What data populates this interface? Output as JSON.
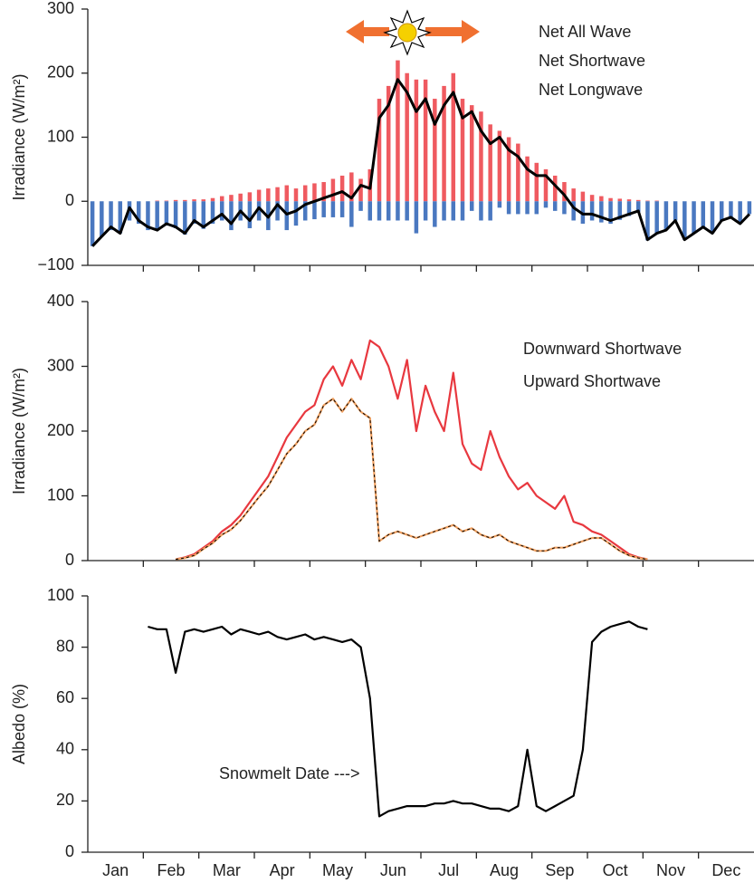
{
  "chart_data": [
    {
      "type": "bar",
      "series": [
        {
          "name": "Net All Wave",
          "type": "line",
          "color": "#000000",
          "values": [
            -70,
            -55,
            -40,
            -50,
            -10,
            -30,
            -40,
            -45,
            -35,
            -40,
            -50,
            -30,
            -40,
            -30,
            -20,
            -35,
            -15,
            -30,
            -10,
            -25,
            -5,
            -20,
            -15,
            -5,
            0,
            5,
            10,
            15,
            5,
            25,
            20,
            130,
            150,
            190,
            170,
            140,
            160,
            120,
            150,
            170,
            130,
            140,
            110,
            90,
            100,
            80,
            70,
            50,
            40,
            40,
            25,
            10,
            -10,
            -20,
            -20,
            -25,
            -30,
            -25,
            -20,
            -15,
            -60,
            -50,
            -45,
            -30,
            -60,
            -50,
            -40,
            -50,
            -30,
            -25,
            -35,
            -20
          ]
        },
        {
          "name": "Net Shortwave",
          "type": "bar",
          "color": "#ef5a60",
          "values": [
            0,
            0,
            0,
            0,
            0,
            0,
            0,
            1,
            1,
            2,
            2,
            3,
            3,
            5,
            8,
            10,
            12,
            14,
            18,
            20,
            22,
            25,
            20,
            25,
            28,
            30,
            35,
            40,
            45,
            35,
            50,
            160,
            180,
            220,
            200,
            190,
            190,
            160,
            180,
            200,
            160,
            150,
            140,
            120,
            110,
            100,
            90,
            70,
            60,
            50,
            40,
            30,
            20,
            15,
            10,
            8,
            5,
            4,
            3,
            2,
            1,
            1,
            0,
            0,
            0,
            0,
            0,
            0,
            0,
            0,
            0,
            0
          ]
        },
        {
          "name": "Net Longwave",
          "type": "bar",
          "color": "#4a78c0",
          "values": [
            -70,
            -55,
            -45,
            -50,
            -30,
            -35,
            -45,
            -45,
            -38,
            -42,
            -52,
            -35,
            -43,
            -35,
            -30,
            -45,
            -30,
            -42,
            -30,
            -45,
            -30,
            -45,
            -38,
            -30,
            -28,
            -25,
            -25,
            -25,
            -40,
            -15,
            -30,
            -30,
            -30,
            -30,
            -30,
            -50,
            -30,
            -40,
            -30,
            -30,
            -30,
            -15,
            -30,
            -30,
            -10,
            -20,
            -20,
            -20,
            -20,
            -10,
            -15,
            -20,
            -30,
            -35,
            -30,
            -33,
            -35,
            -29,
            -23,
            -17,
            -61,
            -51,
            -45,
            -30,
            -60,
            -50,
            -40,
            -50,
            -30,
            -25,
            -35,
            -20
          ]
        }
      ],
      "y_label": "Irradiance (W/m²)",
      "ylim": [
        -100,
        300
      ],
      "yticks": [
        {
          "value": -100,
          "label": "−100"
        },
        0,
        100,
        200,
        300
      ],
      "legend": "upper right"
    },
    {
      "type": "line",
      "series": [
        {
          "name": "Downward Shortwave",
          "type": "line",
          "color": "#e8383f",
          "values": [
            null,
            null,
            null,
            null,
            null,
            null,
            null,
            null,
            null,
            2,
            5,
            10,
            20,
            30,
            45,
            55,
            70,
            90,
            110,
            130,
            160,
            190,
            210,
            230,
            240,
            280,
            300,
            270,
            310,
            280,
            340,
            330,
            300,
            250,
            310,
            200,
            270,
            230,
            200,
            290,
            180,
            150,
            140,
            200,
            160,
            130,
            110,
            120,
            100,
            90,
            80,
            100,
            60,
            55,
            45,
            40,
            30,
            20,
            10,
            5,
            2,
            null,
            null,
            null,
            null,
            null,
            null,
            null,
            null,
            null,
            null,
            null
          ]
        },
        {
          "name": "Upward Shortwave",
          "type": "line",
          "color": "#f0a060",
          "dash": true,
          "values": [
            null,
            null,
            null,
            null,
            null,
            null,
            null,
            null,
            null,
            2,
            4,
            8,
            18,
            27,
            40,
            48,
            62,
            80,
            98,
            115,
            140,
            165,
            180,
            200,
            210,
            240,
            250,
            230,
            250,
            230,
            220,
            30,
            40,
            45,
            40,
            35,
            40,
            45,
            50,
            55,
            45,
            50,
            40,
            35,
            40,
            30,
            25,
            20,
            15,
            15,
            20,
            20,
            25,
            30,
            35,
            35,
            25,
            15,
            8,
            4,
            2,
            null,
            null,
            null,
            null,
            null,
            null,
            null,
            null,
            null,
            null,
            null
          ]
        }
      ],
      "y_label": "Irradiance (W/m²)",
      "ylim": [
        0,
        400
      ],
      "yticks": [
        0,
        100,
        200,
        300,
        400
      ],
      "legend": "upper right"
    },
    {
      "type": "line",
      "categories": [
        null,
        null,
        "Jan",
        null,
        null,
        null,
        null,
        null,
        "Feb",
        null,
        null,
        null,
        null,
        null,
        "Mar",
        null,
        null,
        null,
        null,
        null,
        "Apr",
        null,
        null,
        null,
        null,
        null,
        "May",
        null,
        null,
        null,
        null,
        null,
        "Jun",
        null,
        null,
        null,
        null,
        null,
        "Jul",
        null,
        null,
        null,
        null,
        null,
        "Aug",
        null,
        null,
        null,
        null,
        null,
        "Sep",
        null,
        null,
        null,
        null,
        null,
        "Oct",
        null,
        null,
        null,
        null,
        null,
        "Nov",
        null,
        null,
        null,
        null,
        null,
        "Dec",
        null,
        null,
        null
      ],
      "series": [
        {
          "name": null,
          "type": "line",
          "color": "#000000",
          "values": [
            null,
            null,
            null,
            null,
            null,
            null,
            88,
            87,
            87,
            70,
            86,
            87,
            86,
            87,
            88,
            85,
            87,
            86,
            85,
            86,
            84,
            83,
            84,
            85,
            83,
            84,
            83,
            82,
            83,
            80,
            60,
            14,
            16,
            17,
            18,
            18,
            18,
            19,
            19,
            20,
            19,
            19,
            18,
            17,
            17,
            16,
            18,
            40,
            18,
            16,
            18,
            20,
            22,
            40,
            82,
            86,
            88,
            89,
            90,
            88,
            87,
            null,
            null,
            null,
            null,
            null,
            null,
            null,
            null,
            null,
            null,
            null
          ]
        }
      ],
      "y_label": "Albedo (%)",
      "ylim": [
        0,
        100
      ],
      "yticks": [
        0,
        20,
        40,
        60,
        80,
        100
      ],
      "annotation": "Snowmelt Date --->"
    }
  ]
}
